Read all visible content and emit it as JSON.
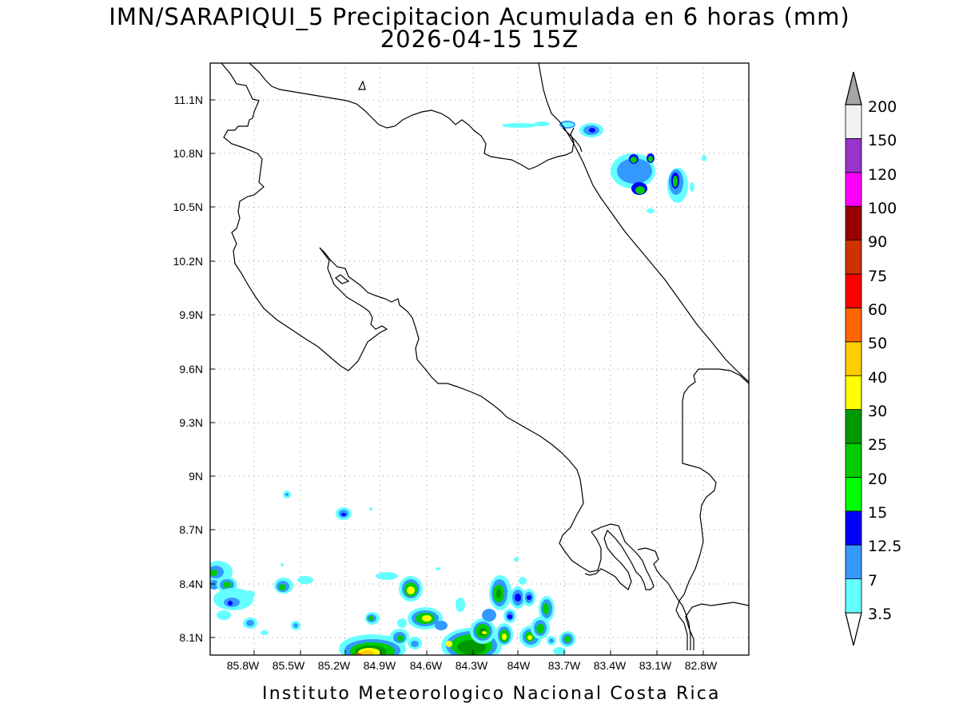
{
  "title": {
    "line1": "IMN/SARAPIQUI_5 Precipitacion Acumulada en 6 horas (mm)",
    "line2": "2026-04-15 15Z"
  },
  "footer": "Instituto Meteorologico Nacional Costa Rica",
  "map": {
    "lon_labels": [
      "85.8W",
      "85.5W",
      "85.2W",
      "84.9W",
      "84.6W",
      "84.3W",
      "84W",
      "83.7W",
      "83.4W",
      "83.1W",
      "82.8W"
    ],
    "lat_labels": [
      "11.1N",
      "10.8N",
      "10.5N",
      "10.2N",
      "9.9N",
      "9.6N",
      "9.3N",
      "9N",
      "8.7N",
      "8.4N",
      "8.1N"
    ],
    "grid": "dotted"
  },
  "colorbar": {
    "labels": [
      "3.5",
      "7",
      "12.5",
      "15",
      "20",
      "25",
      "30",
      "40",
      "50",
      "60",
      "75",
      "90",
      "100",
      "120",
      "150",
      "200"
    ],
    "colors": [
      "#66ffff",
      "#3399ff",
      "#0000ff",
      "#00ff00",
      "#00cc00",
      "#009900",
      "#ffff00",
      "#ffcc00",
      "#ff6600",
      "#ff0000",
      "#cc3300",
      "#990000",
      "#ff00ff",
      "#9933cc",
      "#f2f2f2",
      "#a6a6a6"
    ]
  }
}
